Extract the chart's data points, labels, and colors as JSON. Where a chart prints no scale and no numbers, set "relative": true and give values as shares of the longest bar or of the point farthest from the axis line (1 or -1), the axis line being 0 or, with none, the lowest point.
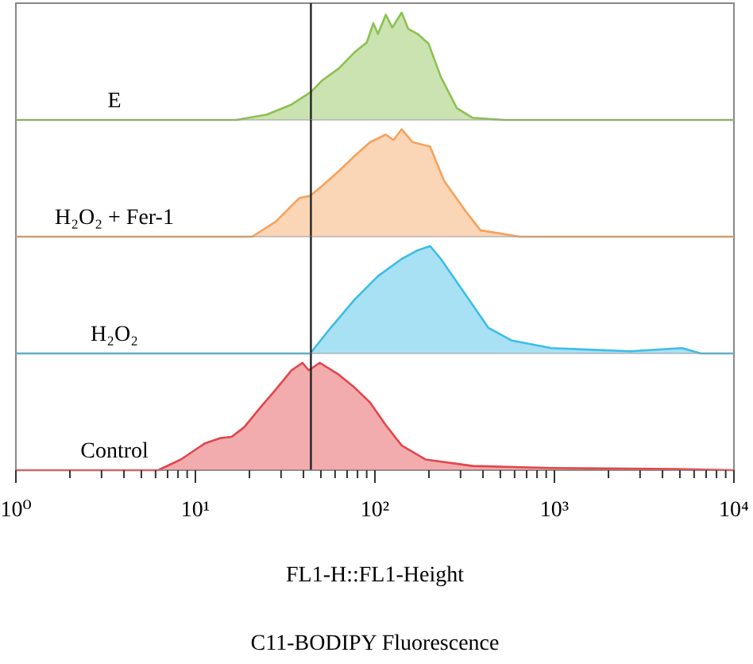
{
  "chart_data": [
    {
      "type": "area",
      "relative": true,
      "log": "x",
      "xlim": [
        1,
        10000
      ],
      "tick_labels": false,
      "ref_lines": [
        {
          "axis": "x",
          "value": 44
        }
      ],
      "series": [
        {
          "name": "E",
          "color": "#8cc152",
          "x": [
            1,
            16.9,
            25,
            34,
            44,
            51,
            63,
            77,
            90,
            98,
            104,
            115,
            125,
            141,
            153,
            173,
            199,
            233,
            286,
            350,
            524,
            10000
          ],
          "values": [
            0,
            0,
            0.05,
            0.14,
            0.26,
            0.37,
            0.48,
            0.63,
            0.72,
            0.9,
            0.8,
            0.98,
            0.86,
            1,
            0.85,
            0.8,
            0.71,
            0.4,
            0.11,
            0.02,
            0,
            0
          ]
        }
      ]
    },
    {
      "type": "area",
      "relative": true,
      "log": "x",
      "xlim": [
        1,
        10000
      ],
      "tick_labels": false,
      "ref_lines": [
        {
          "axis": "x",
          "value": 44
        }
      ],
      "series": [
        {
          "name": "H₂O₂ + Fer-1",
          "color": "#f5a25d",
          "x": [
            1,
            20.7,
            28,
            37.9,
            43.6,
            51.4,
            62.9,
            76.9,
            94,
            115,
            127,
            141,
            162,
            203,
            243,
            316,
            387,
            641,
            10000
          ],
          "values": [
            0,
            0,
            0.14,
            0.36,
            0.38,
            0.48,
            0.61,
            0.75,
            0.88,
            0.95,
            0.9,
            1,
            0.88,
            0.84,
            0.52,
            0.25,
            0.06,
            0,
            0
          ]
        }
      ]
    },
    {
      "type": "area",
      "relative": true,
      "log": "x",
      "xlim": [
        1,
        10000
      ],
      "tick_labels": false,
      "ref_lines": [
        {
          "axis": "x",
          "value": 44
        }
      ],
      "series": [
        {
          "name": "H₂O₂",
          "color": "#3dbde6",
          "x": [
            1,
            43.6,
            56.8,
            76.9,
            104,
            141,
            173,
            203,
            233,
            316,
            428,
            580,
            960,
            2640,
            5140,
            6540,
            10000
          ],
          "values": [
            0,
            0,
            0.24,
            0.5,
            0.72,
            0.88,
            0.96,
            1,
            0.88,
            0.56,
            0.24,
            0.12,
            0.05,
            0.02,
            0.05,
            0,
            0
          ]
        }
      ]
    },
    {
      "type": "area",
      "relative": true,
      "log": "x",
      "xlim": [
        1,
        10000
      ],
      "ref_lines": [
        {
          "axis": "x",
          "value": 44
        }
      ],
      "xticks": [
        {
          "value": 1,
          "label": "10⁰"
        },
        {
          "value": 2,
          "label": null
        },
        {
          "value": 3,
          "label": null
        },
        {
          "value": 4,
          "label": null
        },
        {
          "value": 5,
          "label": null
        },
        {
          "value": 6,
          "label": null
        },
        {
          "value": 7,
          "label": null
        },
        {
          "value": 8,
          "label": null
        },
        {
          "value": 9,
          "label": null
        },
        {
          "value": 10,
          "label": "10¹"
        },
        {
          "value": 20,
          "label": null
        },
        {
          "value": 30,
          "label": null
        },
        {
          "value": 40,
          "label": null
        },
        {
          "value": 50,
          "label": null
        },
        {
          "value": 60,
          "label": null
        },
        {
          "value": 70,
          "label": null
        },
        {
          "value": 80,
          "label": null
        },
        {
          "value": 90,
          "label": null
        },
        {
          "value": 100,
          "label": "10²"
        },
        {
          "value": 200,
          "label": null
        },
        {
          "value": 300,
          "label": null
        },
        {
          "value": 400,
          "label": null
        },
        {
          "value": 500,
          "label": null
        },
        {
          "value": 600,
          "label": null
        },
        {
          "value": 700,
          "label": null
        },
        {
          "value": 800,
          "label": null
        },
        {
          "value": 900,
          "label": null
        },
        {
          "value": 1000,
          "label": "10³"
        },
        {
          "value": 2000,
          "label": null
        },
        {
          "value": 3000,
          "label": null
        },
        {
          "value": 4000,
          "label": null
        },
        {
          "value": 5000,
          "label": null
        },
        {
          "value": 6000,
          "label": null
        },
        {
          "value": 7000,
          "label": null
        },
        {
          "value": 8000,
          "label": null
        },
        {
          "value": 9000,
          "label": null
        },
        {
          "value": 10000,
          "label": "10⁴"
        }
      ],
      "xlabel": "FL1-H::FL1-Height",
      "annotations": [
        "C11-BODIPY Fluorescence"
      ],
      "series": [
        {
          "name": "Control",
          "color": "#e2464b",
          "x": [
            1,
            6.2,
            8.3,
            11.3,
            13.8,
            15.9,
            18.7,
            22.9,
            28,
            34.3,
            39.5,
            42.8,
            49.3,
            62.9,
            76.9,
            94,
            115,
            141,
            191,
            350,
            960,
            4830,
            10000
          ],
          "values": [
            0,
            0,
            0.1,
            0.25,
            0.3,
            0.31,
            0.4,
            0.58,
            0.75,
            0.93,
            1,
            0.93,
            1,
            0.89,
            0.77,
            0.63,
            0.42,
            0.23,
            0.1,
            0.04,
            0.02,
            0.01,
            0
          ]
        }
      ]
    }
  ]
}
